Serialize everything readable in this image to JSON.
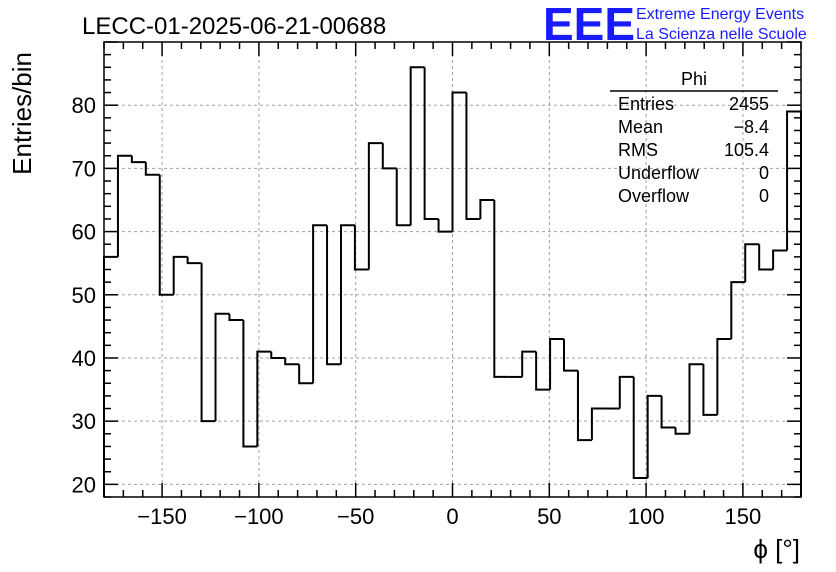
{
  "chart_data": {
    "type": "bar",
    "title": "LECC-01-2025-06-21-00688",
    "xlabel": "ϕ [°]",
    "ylabel": "Entries/bin",
    "xlim": [
      -180,
      180
    ],
    "ylim": [
      18,
      90
    ],
    "bin_width": 7.2,
    "x_ticks": [
      -150,
      -100,
      -50,
      0,
      50,
      100,
      150
    ],
    "x_tick_labels": [
      "−150",
      "−100",
      "−50",
      "0",
      "50",
      "100",
      "150"
    ],
    "y_ticks": [
      20,
      30,
      40,
      50,
      60,
      70,
      80
    ],
    "y_tick_labels": [
      "20",
      "30",
      "40",
      "50",
      "60",
      "70",
      "80"
    ],
    "grid": true,
    "values": [
      56,
      72,
      71,
      69,
      50,
      56,
      55,
      30,
      47,
      46,
      26,
      41,
      40,
      39,
      36,
      61,
      39,
      61,
      54,
      74,
      70,
      61,
      86,
      62,
      60,
      82,
      62,
      65,
      37,
      37,
      41,
      35,
      43,
      38,
      27,
      32,
      32,
      37,
      21,
      34,
      29,
      28,
      39,
      31,
      43,
      52,
      58,
      54,
      57,
      79
    ],
    "stats_box": {
      "title": "Phi",
      "position": "top-right",
      "rows": [
        {
          "label": "Entries",
          "value": "2455"
        },
        {
          "label": "Mean",
          "value": "−8.4"
        },
        {
          "label": "RMS",
          "value": "105.4"
        },
        {
          "label": "Underflow",
          "value": "0"
        },
        {
          "label": "Overflow",
          "value": "0"
        }
      ]
    },
    "logo": {
      "mark": "EEE",
      "line1": "Extreme Energy Events",
      "line2": "La Scienza nelle Scuole",
      "color": "#1a1aff"
    },
    "line_color": "#000000",
    "grid_color": "#a0a0a0"
  }
}
